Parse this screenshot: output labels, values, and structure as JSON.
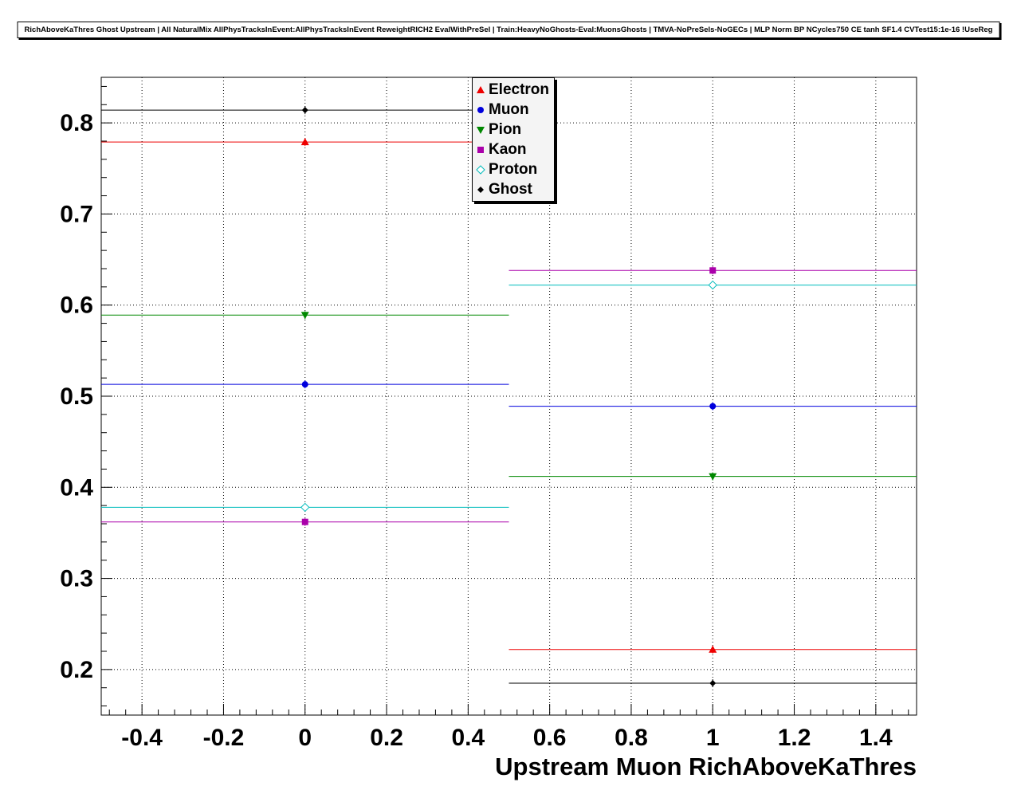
{
  "title": "RichAboveKaThres Ghost Upstream | All NaturalMix AllPhysTracksInEvent:AllPhysTracksInEvent ReweightRICH2 EvalWithPreSel | Train:HeavyNoGhosts-Eval:MuonsGhosts | TMVA-NoPreSels-NoGECs | MLP Norm BP NCycles750 CE tanh SF1.4 CVTest15:1e-16 !UseReg",
  "chart_data": {
    "type": "scatter",
    "title": "RichAboveKaThres Ghost Upstream",
    "xlabel": "Upstream Muon RichAboveKaThres",
    "ylabel": "",
    "xlim": [
      -0.5,
      1.5
    ],
    "ylim": [
      0.15,
      0.85
    ],
    "x_ticks": [
      -0.4,
      -0.2,
      0,
      0.2,
      0.4,
      0.6,
      0.8,
      1,
      1.2,
      1.4
    ],
    "x_tick_labels": [
      "-0.4",
      "-0.2",
      "0",
      "0.2",
      "0.4",
      "0.6",
      "0.8",
      "1",
      "1.2",
      "1.4"
    ],
    "y_ticks": [
      0.2,
      0.3,
      0.4,
      0.5,
      0.6,
      0.7,
      0.8
    ],
    "y_tick_labels": [
      "0.2",
      "0.3",
      "0.4",
      "0.5",
      "0.6",
      "0.7",
      "0.8"
    ],
    "grid": true,
    "legend_position": "top-center",
    "x": [
      0,
      1
    ],
    "x_bin_halfwidth": 0.5,
    "series": [
      {
        "name": "Electron",
        "color": "#ee0000",
        "marker": "triangle-up",
        "values": [
          0.779,
          0.222
        ]
      },
      {
        "name": "Muon",
        "color": "#0000dd",
        "marker": "circle",
        "values": [
          0.513,
          0.489
        ]
      },
      {
        "name": "Pion",
        "color": "#008800",
        "marker": "triangle-down",
        "values": [
          0.589,
          0.412
        ]
      },
      {
        "name": "Kaon",
        "color": "#aa00aa",
        "marker": "square",
        "values": [
          0.362,
          0.638
        ]
      },
      {
        "name": "Proton",
        "color": "#00bbbb",
        "marker": "diamond-open",
        "values": [
          0.378,
          0.622
        ]
      },
      {
        "name": "Ghost",
        "color": "#000000",
        "marker": "diamond",
        "values": [
          0.814,
          0.185
        ]
      }
    ]
  }
}
